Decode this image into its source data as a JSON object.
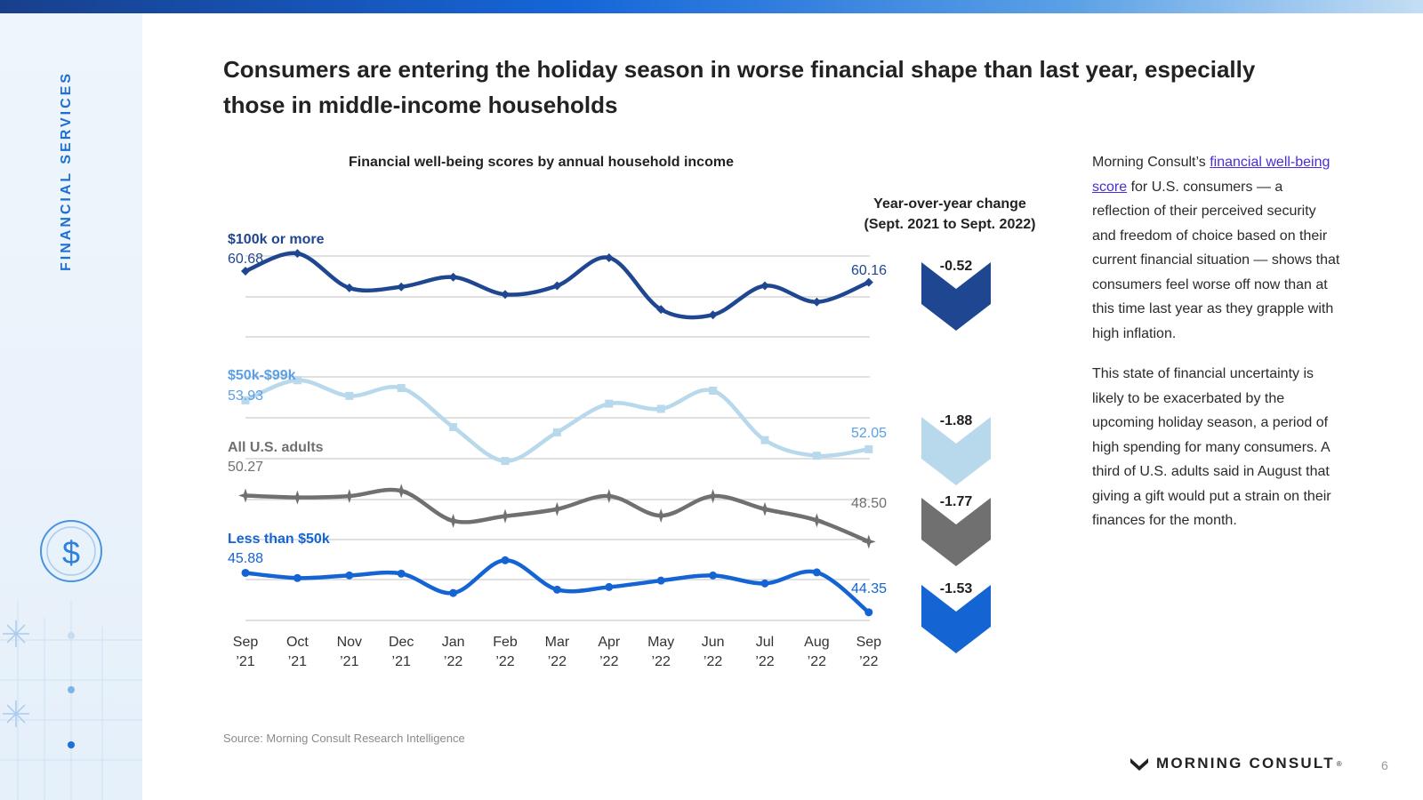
{
  "section_label": "FINANCIAL SERVICES",
  "headline": "Consumers are entering the holiday season in worse financial shape than last year, especially those in middle-income households",
  "chart_data": {
    "type": "line",
    "title": "Financial well-being scores by annual household income",
    "yoy_title_line1": "Year-over-year change",
    "yoy_title_line2": "(Sept. 2021 to Sept. 2022)",
    "categories_line1": [
      "Sep",
      "Oct",
      "Nov",
      "Dec",
      "Jan",
      "Feb",
      "Mar",
      "Apr",
      "May",
      "Jun",
      "Jul",
      "Aug",
      "Sep"
    ],
    "categories_line2": [
      "’21",
      "’21",
      "’21",
      "’21",
      "’22",
      "’22",
      "’22",
      "’22",
      "’22",
      "’22",
      "’22",
      "’22",
      "’22"
    ],
    "series": [
      {
        "name": "$100k or more",
        "color": "#1f4690",
        "marker": "diamond",
        "start_label": "60.68",
        "end_label": "60.16",
        "change": "-0.52",
        "values": [
          60.68,
          61.5,
          59.9,
          59.95,
          60.4,
          59.6,
          60.0,
          61.3,
          58.9,
          58.65,
          60.0,
          59.25,
          60.16
        ]
      },
      {
        "name": "$50k-$99k",
        "color": "#b8d8eb",
        "marker": "square",
        "start_label": "53.93",
        "end_label": "52.05",
        "change": "-1.88",
        "values": [
          53.93,
          54.7,
          54.1,
          54.4,
          52.9,
          51.6,
          52.7,
          53.8,
          53.6,
          54.3,
          52.4,
          51.8,
          52.05
        ]
      },
      {
        "name": "All U.S. adults",
        "color": "#707070",
        "marker": "star",
        "start_label": "50.27",
        "end_label": "48.50",
        "change": "-1.77",
        "values": [
          50.27,
          50.2,
          50.25,
          50.45,
          49.3,
          49.48,
          49.75,
          50.25,
          49.5,
          50.25,
          49.75,
          49.32,
          48.5
        ]
      },
      {
        "name": "Less than $50k",
        "color": "#1464d4",
        "marker": "circle",
        "start_label": "45.88",
        "end_label": "44.35",
        "change": "-1.53",
        "values": [
          45.88,
          45.68,
          45.78,
          45.85,
          45.1,
          46.37,
          45.23,
          45.33,
          45.58,
          45.78,
          45.47,
          45.9,
          44.35
        ]
      }
    ]
  },
  "body": {
    "p1_before": "Morning Consult’s ",
    "p1_link": "financial well-being score",
    "p1_after": " for U.S. consumers — a reflection of their perceived security and freedom of choice based on their current financial situation — shows that consumers feel worse off now than at this time last year as they grapple with high inflation.",
    "p2": "This state of financial uncertainty is likely to be exacerbated by the upcoming holiday season, a period of high spending for many consumers. A third of U.S. adults said in August that giving a gift would put a strain on their finances for the month."
  },
  "source": "Source: Morning Consult Research Intelligence",
  "logo_text": "MORNING CONSULT",
  "logo_mark": "®",
  "page_number": "6",
  "colors": {
    "accent_blue": "#1d6fd6",
    "navy": "#1f4690",
    "light_blue": "#b8d8eb",
    "gray": "#707070",
    "bright_blue": "#1464d4"
  }
}
